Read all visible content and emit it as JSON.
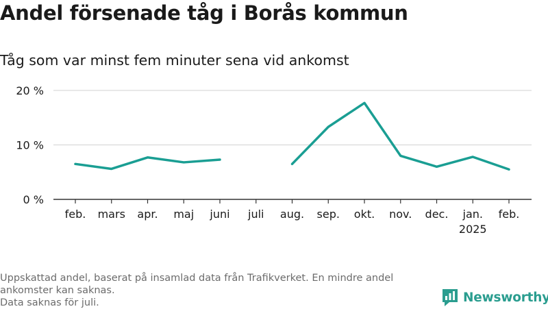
{
  "title": "Andel försenade tåg i Borås kommun",
  "subtitle": "Tåg som var minst fem minuter sena vid ankomst",
  "footnotes": [
    "Uppskattad andel, baserat på insamlad data från Trafikverket. En mindre andel",
    "ankomster kan saknas.",
    "Data saknas för juli."
  ],
  "brand": {
    "name": "Newsworthy",
    "icon": "newsworthy-logo-icon",
    "color": "#2a9d8f"
  },
  "colors": {
    "line": "#1a9e93",
    "grid": "#d9d9d9",
    "axis": "#333333",
    "text": "#1a1a1a"
  },
  "chart_data": {
    "type": "line",
    "categories": [
      "feb.",
      "mars",
      "apr.",
      "maj",
      "juni",
      "juli",
      "aug.",
      "sep.",
      "okt.",
      "nov.",
      "dec.",
      "jan.",
      "feb."
    ],
    "category_sublabels": [
      "",
      "",
      "",
      "",
      "",
      "",
      "",
      "",
      "",
      "",
      "",
      "2025",
      ""
    ],
    "series": [
      {
        "values": [
          6.5,
          5.6,
          7.7,
          6.8,
          7.3,
          null,
          6.5,
          13.3,
          17.7,
          8.0,
          6.0,
          7.8,
          5.5
        ]
      }
    ],
    "ylim": [
      0,
      20
    ],
    "yticks": [
      0,
      10,
      20
    ],
    "ytick_labels": [
      "0 %",
      "10 %",
      "20 %"
    ],
    "grid": true,
    "legend": "none"
  }
}
